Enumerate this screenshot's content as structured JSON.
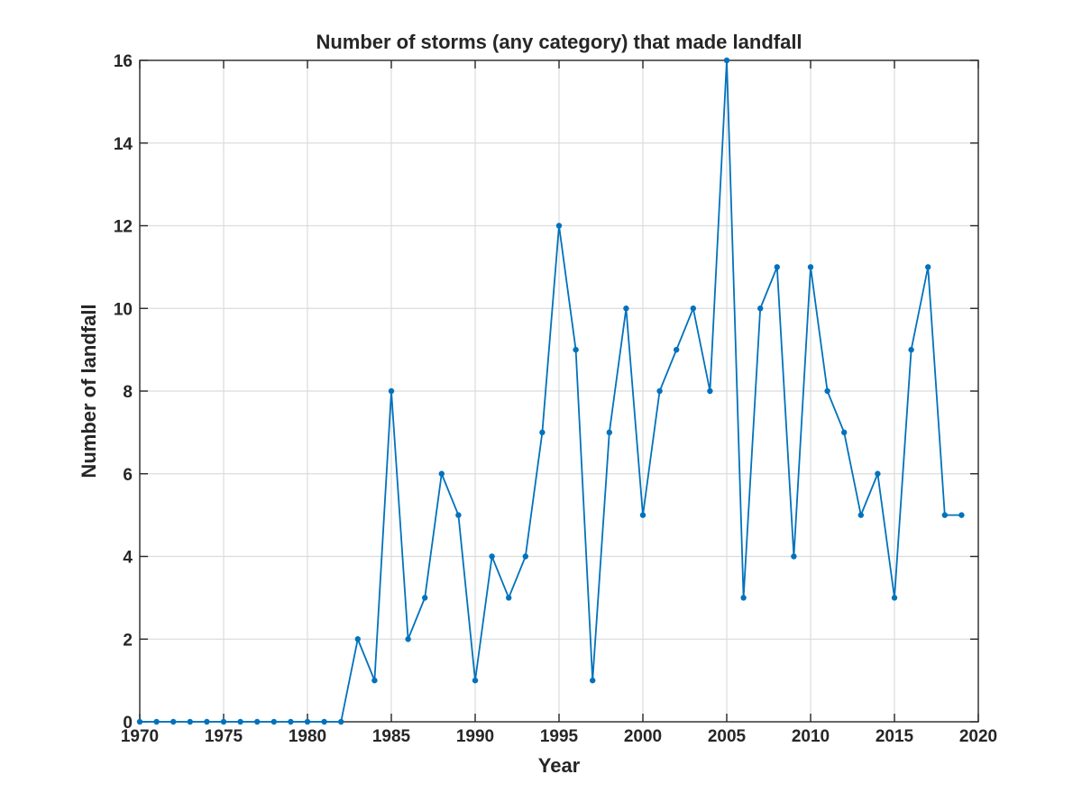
{
  "chart_data": {
    "type": "line",
    "title": "Number of storms (any category) that made landfall",
    "xlabel": "Year",
    "ylabel": "Number of landfall",
    "xlim": [
      1970,
      2020
    ],
    "ylim": [
      0,
      16
    ],
    "xticks": [
      1970,
      1975,
      1980,
      1985,
      1990,
      1995,
      2000,
      2005,
      2010,
      2015,
      2020
    ],
    "yticks": [
      0,
      2,
      4,
      6,
      8,
      10,
      12,
      14,
      16
    ],
    "grid": true,
    "legend": "none",
    "series": [
      {
        "color": "#0072bd",
        "marker": "dot",
        "x": [
          1970,
          1971,
          1972,
          1973,
          1974,
          1975,
          1976,
          1977,
          1978,
          1979,
          1980,
          1981,
          1982,
          1983,
          1984,
          1985,
          1986,
          1987,
          1988,
          1989,
          1990,
          1991,
          1992,
          1993,
          1994,
          1995,
          1996,
          1997,
          1998,
          1999,
          2000,
          2001,
          2002,
          2003,
          2004,
          2005,
          2006,
          2007,
          2008,
          2009,
          2010,
          2011,
          2012,
          2013,
          2014,
          2015,
          2016,
          2017,
          2018,
          2019
        ],
        "y": [
          0,
          0,
          0,
          0,
          0,
          0,
          0,
          0,
          0,
          0,
          0,
          0,
          0,
          2,
          1,
          8,
          2,
          3,
          6,
          5,
          1,
          4,
          3,
          4,
          7,
          12,
          9,
          1,
          7,
          10,
          5,
          8,
          9,
          10,
          8,
          16,
          3,
          10,
          11,
          4,
          11,
          8,
          7,
          5,
          6,
          3,
          9,
          11,
          5,
          5
        ]
      }
    ]
  }
}
